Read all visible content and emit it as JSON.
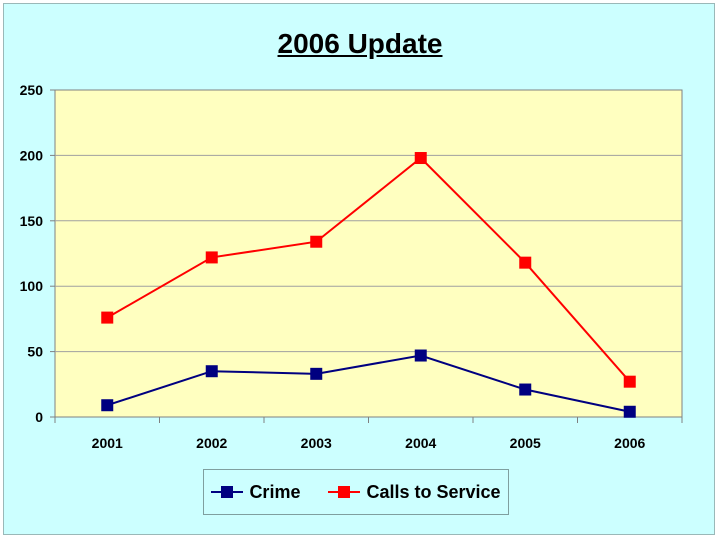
{
  "chart_data": {
    "type": "line",
    "title": "2006 Update",
    "categories": [
      "2001",
      "2002",
      "2003",
      "2004",
      "2005",
      "2006"
    ],
    "series": [
      {
        "name": "Crime",
        "values": [
          9,
          35,
          33,
          47,
          21,
          4
        ],
        "color": "#000080"
      },
      {
        "name": "Calls to Service",
        "values": [
          76,
          122,
          134,
          198,
          118,
          27
        ],
        "color": "#ff0000"
      }
    ],
    "xlabel": "",
    "ylabel": "",
    "ylim": [
      0,
      250
    ],
    "yticks": [
      0,
      50,
      100,
      150,
      200,
      250
    ],
    "grid": true,
    "legend": "bottom",
    "plot_background": "#ffffc0",
    "page_background": "#ccffff"
  }
}
